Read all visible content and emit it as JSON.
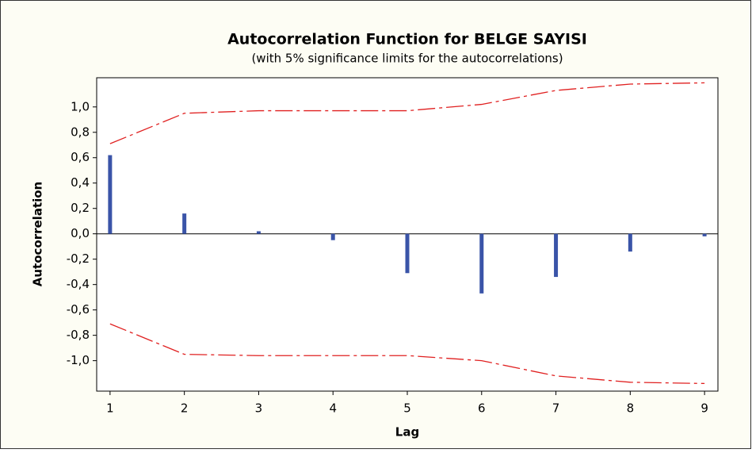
{
  "chart_data": {
    "type": "acf",
    "title": "Autocorrelation Function for BELGE SAYISI",
    "subtitle": "(with 5% significance limits for the autocorrelations)",
    "x_label": "Lag",
    "y_label": "Autocorrelation",
    "x": [
      1,
      2,
      3,
      4,
      5,
      6,
      7,
      8,
      9
    ],
    "values": [
      0.62,
      0.16,
      0.02,
      -0.05,
      -0.31,
      -0.47,
      -0.34,
      -0.14,
      -0.02
    ],
    "color": "#3a54a8",
    "upper_limits": [
      0.71,
      0.95,
      0.97,
      0.97,
      0.97,
      1.02,
      1.13,
      1.18,
      1.19
    ],
    "lower_limits": [
      -0.71,
      -0.95,
      -0.96,
      -0.96,
      -0.96,
      -1.0,
      -1.12,
      -1.17,
      -1.18
    ],
    "limit_color": "#e02020",
    "xlim": [
      0.82,
      9.18
    ],
    "xticks": [
      1,
      2,
      3,
      4,
      5,
      6,
      7,
      8,
      9
    ],
    "ylim": [
      -1.24,
      1.23
    ],
    "yticks": [
      {
        "value": -1.0,
        "label": "-1,0"
      },
      {
        "value": -0.8,
        "label": "-0,8"
      },
      {
        "value": -0.6,
        "label": "-0,6"
      },
      {
        "value": -0.4,
        "label": "-0,4"
      },
      {
        "value": -0.2,
        "label": "-0,2"
      },
      {
        "value": 0.0,
        "label": "0,0"
      },
      {
        "value": 0.2,
        "label": "0,2"
      },
      {
        "value": 0.4,
        "label": "0,4"
      },
      {
        "value": 0.6,
        "label": "0,6"
      },
      {
        "value": 0.8,
        "label": "0,8"
      },
      {
        "value": 1.0,
        "label": "1,0"
      }
    ]
  }
}
